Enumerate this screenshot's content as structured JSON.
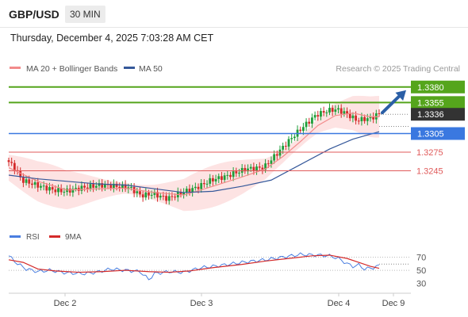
{
  "header": {
    "symbol": "GBP/USD",
    "timeframe": "30 MIN"
  },
  "date_line": "Thursday, December 4, 2025 7:03:28 AM CET",
  "legend": {
    "ma": "MA 20 + Bollinger Bands",
    "ma50": "MA 50",
    "credit": "Research © 2025 Trading Central",
    "rsi": "RSI",
    "rsi_ma": "9MA"
  },
  "colors": {
    "candle_up": "#1e9e3a",
    "candle_down": "#d42a2a",
    "ma20": "#f28b8b",
    "bollinger_fill": "#fde3e3",
    "ma50": "#35589a",
    "resistance": "#55a51c",
    "support_main": "#3a78e0",
    "support_minor": "#e05a5a",
    "current": "#333333",
    "arrow": "#2b5fa6",
    "rsi": "#4a7ee0",
    "rsi_ma": "#d42a2a"
  },
  "chart_data": [
    {
      "type": "candlestick",
      "y_range": [
        1.3155,
        1.3395
      ],
      "levels": [
        {
          "label": "1.3380",
          "value": 1.338,
          "kind": "resistance"
        },
        {
          "label": "1.3355",
          "value": 1.3355,
          "kind": "resistance"
        },
        {
          "label": "1.3336",
          "value": 1.3336,
          "kind": "current"
        },
        {
          "label": "1.3305",
          "value": 1.3305,
          "kind": "support_main"
        },
        {
          "label": "1.3275",
          "value": 1.3275,
          "kind": "support_minor"
        },
        {
          "label": "1.3245",
          "value": 1.3245,
          "kind": "support_minor"
        }
      ],
      "x_labels": [
        "Dec 2",
        "Dec 3",
        "Dec 4",
        "Dec 9"
      ],
      "price_path": [
        [
          0,
          1.3262
        ],
        [
          3,
          1.3248
        ],
        [
          5,
          1.323
        ],
        [
          10,
          1.3222
        ],
        [
          16,
          1.3214
        ],
        [
          20,
          1.3212
        ],
        [
          26,
          1.3218
        ],
        [
          32,
          1.3222
        ],
        [
          38,
          1.322
        ],
        [
          42,
          1.3218
        ],
        [
          46,
          1.3205
        ],
        [
          50,
          1.3208
        ],
        [
          55,
          1.32
        ],
        [
          60,
          1.321
        ],
        [
          65,
          1.3218
        ],
        [
          70,
          1.323
        ],
        [
          75,
          1.3236
        ],
        [
          82,
          1.3248
        ],
        [
          88,
          1.325
        ],
        [
          92,
          1.327
        ],
        [
          95,
          1.3285
        ],
        [
          98,
          1.33
        ],
        [
          102,
          1.3318
        ],
        [
          106,
          1.3335
        ],
        [
          110,
          1.3342
        ],
        [
          113,
          1.3344
        ],
        [
          116,
          1.3338
        ],
        [
          118,
          1.3332
        ],
        [
          120,
          1.3326
        ],
        [
          122,
          1.3328
        ],
        [
          125,
          1.333
        ],
        [
          127,
          1.3336
        ]
      ],
      "ma20_path": [
        [
          0,
          1.325
        ],
        [
          10,
          1.3228
        ],
        [
          20,
          1.3214
        ],
        [
          30,
          1.3216
        ],
        [
          40,
          1.3217
        ],
        [
          50,
          1.321
        ],
        [
          60,
          1.3206
        ],
        [
          70,
          1.322
        ],
        [
          80,
          1.3235
        ],
        [
          88,
          1.3248
        ],
        [
          94,
          1.3268
        ],
        [
          100,
          1.3292
        ],
        [
          106,
          1.3318
        ],
        [
          112,
          1.3334
        ],
        [
          118,
          1.3338
        ],
        [
          124,
          1.3332
        ],
        [
          127,
          1.3332
        ]
      ],
      "ma50_path": [
        [
          0,
          1.3238
        ],
        [
          10,
          1.3232
        ],
        [
          20,
          1.3228
        ],
        [
          30,
          1.3224
        ],
        [
          40,
          1.3222
        ],
        [
          50,
          1.3216
        ],
        [
          60,
          1.321
        ],
        [
          70,
          1.3212
        ],
        [
          80,
          1.322
        ],
        [
          90,
          1.323
        ],
        [
          100,
          1.3255
        ],
        [
          110,
          1.328
        ],
        [
          118,
          1.3296
        ],
        [
          124,
          1.3304
        ],
        [
          127,
          1.3308
        ]
      ],
      "band_width": 0.0028,
      "candles": 128
    },
    {
      "type": "line",
      "title": "RSI",
      "y_range": [
        20,
        85
      ],
      "y_ticks": [
        70,
        50,
        30
      ],
      "rsi": [
        [
          0,
          72
        ],
        [
          3,
          60
        ],
        [
          6,
          52
        ],
        [
          10,
          48
        ],
        [
          14,
          50
        ],
        [
          20,
          46
        ],
        [
          26,
          45
        ],
        [
          30,
          47
        ],
        [
          35,
          52
        ],
        [
          40,
          50
        ],
        [
          45,
          48
        ],
        [
          48,
          36
        ],
        [
          50,
          45
        ],
        [
          55,
          48
        ],
        [
          60,
          47
        ],
        [
          66,
          54
        ],
        [
          72,
          57
        ],
        [
          80,
          62
        ],
        [
          88,
          66
        ],
        [
          94,
          70
        ],
        [
          100,
          74
        ],
        [
          106,
          73
        ],
        [
          110,
          72
        ],
        [
          113,
          68
        ],
        [
          116,
          60
        ],
        [
          118,
          56
        ],
        [
          120,
          58
        ],
        [
          122,
          52
        ],
        [
          125,
          54
        ],
        [
          127,
          57
        ]
      ],
      "rsi_ma": [
        [
          0,
          66
        ],
        [
          5,
          62
        ],
        [
          10,
          52
        ],
        [
          16,
          49
        ],
        [
          24,
          47
        ],
        [
          32,
          48
        ],
        [
          40,
          50
        ],
        [
          48,
          48
        ],
        [
          55,
          47
        ],
        [
          62,
          49
        ],
        [
          70,
          54
        ],
        [
          80,
          59
        ],
        [
          88,
          64
        ],
        [
          96,
          68
        ],
        [
          104,
          72
        ],
        [
          110,
          73
        ],
        [
          116,
          68
        ],
        [
          120,
          62
        ],
        [
          124,
          56
        ],
        [
          127,
          53
        ]
      ]
    }
  ]
}
